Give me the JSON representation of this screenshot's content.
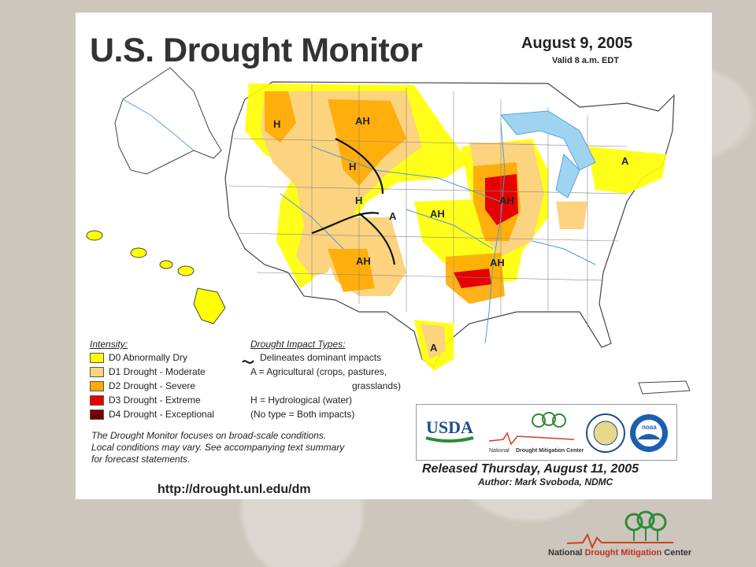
{
  "header": {
    "title": "U.S. Drought Monitor",
    "date": "August 9, 2005",
    "valid": "Valid 8 a.m. EDT"
  },
  "legend": {
    "intensity_title": "Intensity:",
    "items": [
      {
        "label": "D0 Abnormally Dry",
        "color": "#ffff00"
      },
      {
        "label": "D1 Drought - Moderate",
        "color": "#fcd37f"
      },
      {
        "label": "D2 Drought - Severe",
        "color": "#ffaa00"
      },
      {
        "label": "D3 Drought - Extreme",
        "color": "#e60000"
      },
      {
        "label": "D4 Drought - Exceptional",
        "color": "#730000"
      }
    ],
    "impact_title": "Drought Impact Types:",
    "impact_lines": [
      "Delineates dominant impacts",
      "A = Agricultural (crops, pastures,",
      "grasslands)",
      "H = Hydrological (water)",
      "(No type = Both impacts)"
    ]
  },
  "map": {
    "labels": [
      "H",
      "AH",
      "H",
      "H",
      "A",
      "AH",
      "AH",
      "AH",
      "AH",
      "A",
      "A"
    ]
  },
  "footer": {
    "note_lines": [
      "The Drought Monitor focuses on broad-scale conditions.",
      "Local conditions may vary.  See accompanying text summary",
      "for forecast statements."
    ],
    "url": "http://drought.unl.edu/dm",
    "released": "Released Thursday, August 11, 2005",
    "author": "Author: Mark Svoboda, NDMC"
  },
  "logos": {
    "usda": "USDA",
    "ndmc_small_prefix": "National",
    "ndmc_small_main": "Drought Mitigation Center",
    "noaa": "noaa"
  },
  "corner_logo": {
    "prefix": "National",
    "main": "Drought Mitigation",
    "suffix": "Center"
  }
}
